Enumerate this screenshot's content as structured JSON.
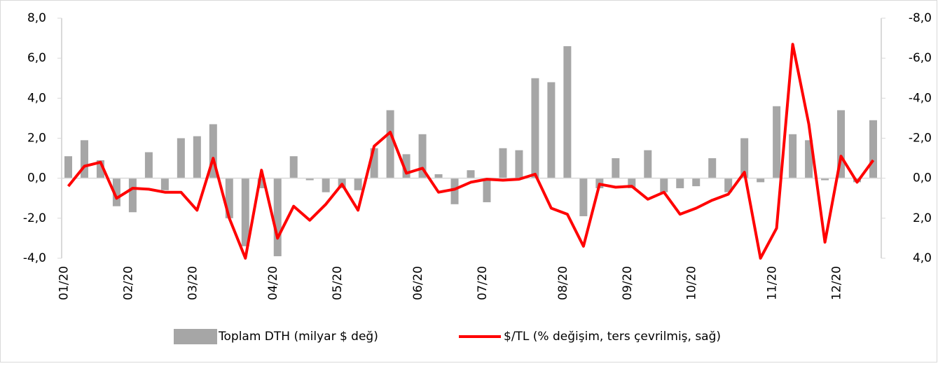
{
  "chart_data": {
    "type": "bar_line",
    "categories": [
      "01/20",
      null,
      null,
      null,
      "02/20",
      null,
      null,
      null,
      "03/20",
      null,
      null,
      null,
      null,
      "04/20",
      null,
      null,
      null,
      "05/20",
      null,
      null,
      null,
      null,
      "06/20",
      null,
      null,
      null,
      "07/20",
      null,
      null,
      null,
      null,
      "08/20",
      null,
      null,
      null,
      "09/20",
      null,
      null,
      null,
      "10/20",
      null,
      null,
      null,
      null,
      "11/20",
      null,
      null,
      null,
      "12/20",
      null,
      null
    ],
    "series": [
      {
        "name": "Toplam DTH (milyar $ değ)",
        "color": "#a6a6a6",
        "type": "bar",
        "values": [
          1.1,
          1.9,
          0.9,
          -1.4,
          -1.7,
          1.3,
          -0.6,
          2.0,
          2.1,
          2.7,
          -2.0,
          -3.4,
          -0.5,
          -3.9,
          1.1,
          -0.1,
          -0.7,
          -0.5,
          -0.6,
          1.5,
          3.4,
          1.2,
          2.2,
          0.2,
          -1.3,
          0.4,
          -1.2,
          1.5,
          1.4,
          5.0,
          4.8,
          6.6,
          -1.9,
          -0.5,
          1.0,
          -0.5,
          1.4,
          -0.7,
          -0.5,
          -0.4,
          1.0,
          -0.7,
          2.0,
          -0.2,
          3.6,
          2.2,
          1.9,
          -0.1,
          3.4,
          -0.2,
          2.9
        ]
      },
      {
        "name": "$/TL (% değişim, ters çevrilmiş, sağ)",
        "color": "#ff0000",
        "type": "line",
        "axis": "y2",
        "values": [
          0.4,
          -0.6,
          -0.8,
          1.0,
          0.5,
          0.55,
          0.7,
          0.7,
          1.6,
          -1.0,
          2.0,
          4.0,
          -0.4,
          3.0,
          1.4,
          2.1,
          1.3,
          0.3,
          1.6,
          -1.6,
          -2.3,
          -0.25,
          -0.5,
          0.7,
          0.55,
          0.2,
          0.05,
          0.1,
          0.05,
          -0.2,
          1.5,
          1.8,
          3.4,
          0.3,
          0.45,
          0.4,
          1.05,
          0.7,
          1.8,
          1.5,
          1.1,
          0.8,
          -0.3,
          4.0,
          2.5,
          -6.7,
          -2.7,
          3.2,
          -1.1,
          0.2,
          -0.9
        ]
      }
    ],
    "ylim": [
      -4,
      8
    ],
    "yticks": [
      {
        "value": 8,
        "label": "8,0"
      },
      {
        "value": 6,
        "label": "6,0"
      },
      {
        "value": 4,
        "label": "4,0"
      },
      {
        "value": 2,
        "label": "2,0"
      },
      {
        "value": 0,
        "label": "0,0"
      },
      {
        "value": -2,
        "label": "-2,0"
      },
      {
        "value": -4,
        "label": "-4,0"
      }
    ],
    "y2lim": [
      4,
      -8
    ],
    "y2ticks": [
      {
        "value": -8,
        "label": "-8,0"
      },
      {
        "value": -6,
        "label": "-6,0"
      },
      {
        "value": -4,
        "label": "-4,0"
      },
      {
        "value": -2,
        "label": "-2,0"
      },
      {
        "value": 0,
        "label": "0,0"
      },
      {
        "value": 2,
        "label": "2,0"
      },
      {
        "value": 4,
        "label": "4,0"
      }
    ]
  }
}
